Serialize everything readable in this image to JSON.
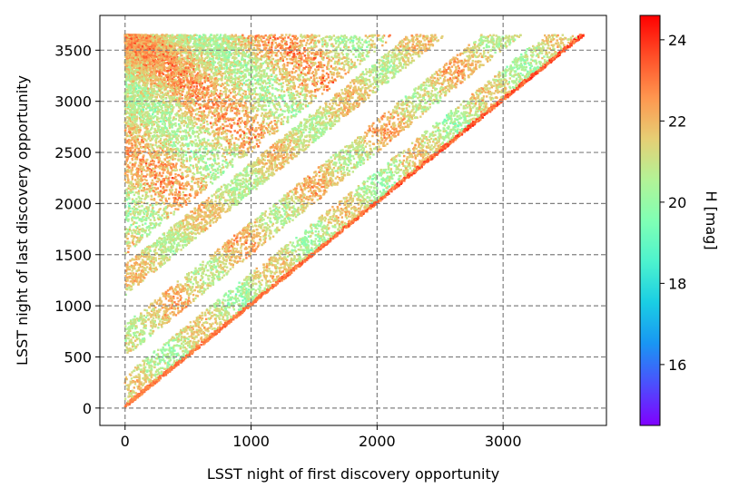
{
  "chart_data": {
    "type": "scatter",
    "title": "",
    "xlabel": "LSST night of first discovery opportunity",
    "ylabel": "LSST night of last discovery opportunity",
    "xlim": [
      -200,
      3820
    ],
    "ylim": [
      -170,
      3840
    ],
    "xticks": [
      0,
      1000,
      2000,
      3000
    ],
    "yticks": [
      0,
      500,
      1000,
      1500,
      2000,
      2500,
      3000,
      3500
    ],
    "grid": true,
    "grid_style": "dashed",
    "colormap": "rainbow",
    "colorbar": {
      "label": "H [mag]",
      "range": [
        14.5,
        24.6
      ],
      "ticks": [
        16,
        18,
        20,
        22,
        24
      ]
    },
    "data_extent": {
      "first_night": [
        0,
        3650
      ],
      "last_night": [
        0,
        3650
      ],
      "constraint": "last >= first"
    },
    "bands": [
      {
        "desc": "diagonal edge",
        "offset_min": 0,
        "offset_max": 40,
        "h_range": [
          22.5,
          24.5
        ]
      },
      {
        "desc": "first-year band",
        "offset_min": 40,
        "offset_max": 320,
        "h_range": [
          19.0,
          23.0
        ]
      },
      {
        "desc": "second band",
        "offset_min": 500,
        "offset_max": 820,
        "h_range": [
          19.5,
          23.5
        ]
      },
      {
        "desc": "third band",
        "offset_min": 1100,
        "offset_max": 1400,
        "h_range": [
          19.5,
          23.0
        ]
      },
      {
        "desc": "upper-left fill",
        "offset_min": 1500,
        "offset_max": 3650,
        "h_range": [
          19.0,
          24.0
        ]
      }
    ],
    "colors": {
      "grid": "#808080",
      "axes": "#000000",
      "background": "#ffffff"
    }
  }
}
